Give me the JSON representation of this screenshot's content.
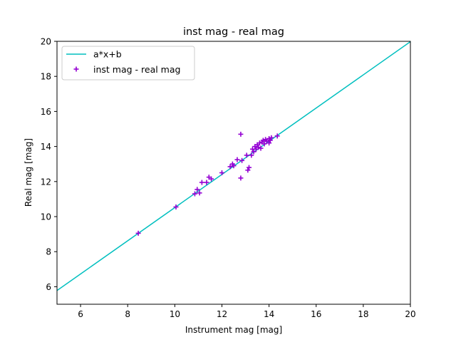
{
  "chart_data": {
    "type": "scatter",
    "title": "inst mag - real mag",
    "xlabel": "Instrument mag [mag]",
    "ylabel": "Real mag [mag]",
    "xlim": [
      5,
      20
    ],
    "ylim": [
      5,
      20
    ],
    "xticks": [
      6,
      8,
      10,
      12,
      14,
      16,
      18,
      20
    ],
    "yticks": [
      6,
      8,
      10,
      12,
      14,
      16,
      18,
      20
    ],
    "grid": false,
    "legend_position": "upper-left",
    "series": [
      {
        "name": "a*x+b",
        "kind": "line",
        "color": "#00bfbf",
        "points": [
          [
            5,
            5.78
          ],
          [
            20,
            19.98
          ]
        ]
      },
      {
        "name": "inst mag - real mag",
        "kind": "scatter",
        "marker": "+",
        "color": "#9400d3",
        "points": [
          [
            8.45,
            9.05
          ],
          [
            10.05,
            10.55
          ],
          [
            10.85,
            11.3
          ],
          [
            10.95,
            11.55
          ],
          [
            11.05,
            11.35
          ],
          [
            11.15,
            11.95
          ],
          [
            11.35,
            11.95
          ],
          [
            11.45,
            12.25
          ],
          [
            11.55,
            12.15
          ],
          [
            12.0,
            12.5
          ],
          [
            12.35,
            12.85
          ],
          [
            12.45,
            13.0
          ],
          [
            12.5,
            12.9
          ],
          [
            12.65,
            13.25
          ],
          [
            12.8,
            14.7
          ],
          [
            12.8,
            12.2
          ],
          [
            12.85,
            13.2
          ],
          [
            13.05,
            13.5
          ],
          [
            13.1,
            12.65
          ],
          [
            13.15,
            12.8
          ],
          [
            13.25,
            13.5
          ],
          [
            13.3,
            13.85
          ],
          [
            13.35,
            13.7
          ],
          [
            13.4,
            14.0
          ],
          [
            13.45,
            13.85
          ],
          [
            13.5,
            14.1
          ],
          [
            13.55,
            13.95
          ],
          [
            13.6,
            14.2
          ],
          [
            13.65,
            13.9
          ],
          [
            13.7,
            14.25
          ],
          [
            13.75,
            14.35
          ],
          [
            13.8,
            14.15
          ],
          [
            13.85,
            14.4
          ],
          [
            13.9,
            14.3
          ],
          [
            14.0,
            14.45
          ],
          [
            14.0,
            14.2
          ],
          [
            14.05,
            14.35
          ],
          [
            14.1,
            14.5
          ],
          [
            14.35,
            14.6
          ]
        ]
      }
    ]
  }
}
